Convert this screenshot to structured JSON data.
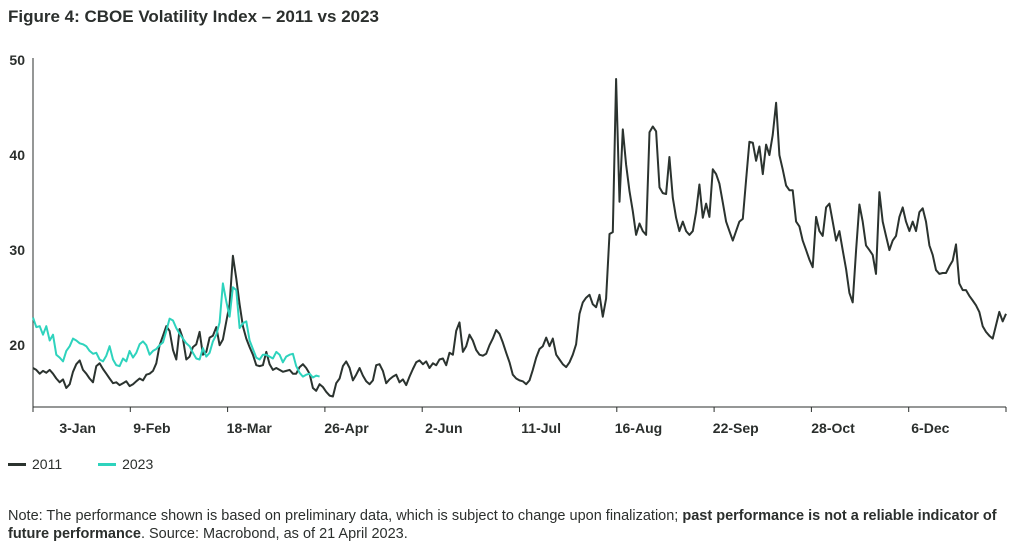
{
  "title": "Figure 4: CBOE Volatility Index – 2011 vs 2023",
  "note": {
    "part1": "Note: The performance shown is based on preliminary data, which is subject to change upon finalization; ",
    "bold": "past performance is not a reliable indicator of future performance",
    "part2": ". Source: Macrobond, as of 21 April 2023."
  },
  "chart_data": {
    "type": "line",
    "title": "Figure 4: CBOE Volatility Index – 2011 vs 2023",
    "xlabel": "",
    "ylabel": "",
    "ylim": [
      13.5,
      50
    ],
    "yticks": [
      20,
      30,
      40,
      50
    ],
    "xticks": [
      "3-Jan",
      "9-Feb",
      "18-Mar",
      "26-Apr",
      "2-Jun",
      "11-Jul",
      "16-Aug",
      "22-Sep",
      "28-Oct",
      "6-Dec"
    ],
    "legend_position": "bottom-left",
    "grid": false,
    "series": [
      {
        "name": "2011",
        "color": "#2b332f",
        "values": [
          17.6,
          17.4,
          17.0,
          17.3,
          17.1,
          17.4,
          17.0,
          16.5,
          16.1,
          16.4,
          15.5,
          15.9,
          17.2,
          18.0,
          18.4,
          17.4,
          17.0,
          16.5,
          16.1,
          17.8,
          18.1,
          17.5,
          17.0,
          16.5,
          16.0,
          16.1,
          15.8,
          16.0,
          16.2,
          15.7,
          15.9,
          16.2,
          16.5,
          16.3,
          16.9,
          17.0,
          17.3,
          18.1,
          20.0,
          21.0,
          22.0,
          21.5,
          19.5,
          18.5,
          21.7,
          20.7,
          18.5,
          18.8,
          19.8,
          20.1,
          21.4,
          19.0,
          19.3,
          20.8,
          21.0,
          21.9,
          20.0,
          20.6,
          22.5,
          24.3,
          29.4,
          27.0,
          24.3,
          22.0,
          20.7,
          19.8,
          19.0,
          17.9,
          17.8,
          17.9,
          19.3,
          18.0,
          17.4,
          17.6,
          17.4,
          17.2,
          17.3,
          17.4,
          17.0,
          17.0,
          17.7,
          18.0,
          17.6,
          17.0,
          15.5,
          15.2,
          15.9,
          15.6,
          15.1,
          14.7,
          14.6,
          16.0,
          16.5,
          17.8,
          18.3,
          17.6,
          16.3,
          16.9,
          17.6,
          16.8,
          16.2,
          15.9,
          16.3,
          17.9,
          18.0,
          17.3,
          16.0,
          16.4,
          16.7,
          16.9,
          16.1,
          16.4,
          15.8,
          16.7,
          17.5,
          18.2,
          18.4,
          18.0,
          18.3,
          17.6,
          18.1,
          17.9,
          18.5,
          18.6,
          17.9,
          19.2,
          19.0,
          21.5,
          22.4,
          19.3,
          19.9,
          21.1,
          20.5,
          19.5,
          19.0,
          18.9,
          19.1,
          20.0,
          20.7,
          21.6,
          21.2,
          20.3,
          19.2,
          18.2,
          16.9,
          16.5,
          16.3,
          16.2,
          15.9,
          16.3,
          17.4,
          18.7,
          19.6,
          19.9,
          20.8,
          19.9,
          20.7,
          19.0,
          18.5,
          18.0,
          17.7,
          18.2,
          19.0,
          20.1,
          23.3,
          24.5,
          25.0,
          25.3,
          24.3,
          24.0,
          25.3,
          23.0,
          24.9,
          31.7,
          31.9,
          48.0,
          35.1,
          42.7,
          39.0,
          36.2,
          34.1,
          31.6,
          32.8,
          32.0,
          31.6,
          42.4,
          43.0,
          42.5,
          36.6,
          36.0,
          35.9,
          39.8,
          35.5,
          33.4,
          32.0,
          33.0,
          32.0,
          31.6,
          32.0,
          34.0,
          36.9,
          33.4,
          34.9,
          33.5,
          38.5,
          38.0,
          37.0,
          35.0,
          33.0,
          32.0,
          31.0,
          32.0,
          33.0,
          33.3,
          37.4,
          41.4,
          41.3,
          39.4,
          40.9,
          38.0,
          41.1,
          40.0,
          42.1,
          45.5,
          40.0,
          38.5,
          36.8,
          36.3,
          36.3,
          33.0,
          32.5,
          31.0,
          30.0,
          29.0,
          28.2,
          33.5,
          32.0,
          31.5,
          34.5,
          34.9,
          33.0,
          31.0,
          32.0,
          30.0,
          28.0,
          25.5,
          24.5,
          30.0,
          34.8,
          33.0,
          30.5,
          30.0,
          29.5,
          27.5,
          36.1,
          33.0,
          31.5,
          30.0,
          31.0,
          31.5,
          33.5,
          34.5,
          33.0,
          32.0,
          33.0,
          32.0,
          34.0,
          34.4,
          33.0,
          30.5,
          29.5,
          27.9,
          27.5,
          27.6,
          27.6,
          28.3,
          28.9,
          30.6,
          26.5,
          25.8,
          25.8,
          25.2,
          24.7,
          24.2,
          23.5,
          22.0,
          21.4,
          21.0,
          20.7,
          22.1,
          23.5,
          22.5,
          23.3
        ]
      },
      {
        "name": "2023",
        "color": "#2ed3bd",
        "values": [
          22.9,
          21.9,
          22.0,
          21.1,
          22.0,
          20.5,
          21.1,
          19.0,
          18.7,
          18.3,
          19.4,
          19.9,
          20.7,
          20.5,
          20.2,
          20.1,
          19.9,
          19.4,
          19.1,
          19.2,
          18.5,
          18.3,
          18.9,
          19.9,
          18.5,
          17.9,
          17.8,
          18.6,
          18.3,
          19.4,
          18.7,
          19.2,
          20.1,
          20.4,
          20.0,
          19.0,
          19.4,
          19.6,
          20.0,
          20.3,
          21.5,
          22.8,
          22.6,
          21.8,
          21.2,
          20.7,
          20.2,
          19.9,
          19.2,
          18.6,
          18.5,
          19.7,
          18.8,
          19.2,
          20.4,
          21.1,
          22.4,
          26.5,
          24.6,
          23.0,
          26.1,
          25.8,
          21.8,
          22.3,
          22.5,
          20.5,
          19.6,
          18.7,
          18.5,
          19.0,
          19.0,
          18.8,
          18.6,
          19.3,
          19.0,
          18.2,
          18.8,
          19.0,
          19.1,
          17.8,
          17.1,
          16.7,
          16.9,
          17.0,
          16.6,
          16.8,
          16.7
        ]
      }
    ]
  }
}
